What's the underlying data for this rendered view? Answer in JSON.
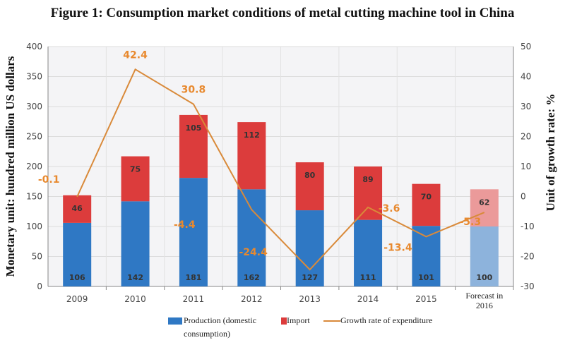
{
  "chart_data": {
    "type": "bar",
    "title": "Figure 1: Consumption market conditions of metal cutting machine tool in China",
    "ylabel": "Monetary unit: hundred million US dollars",
    "y2label": "Unit of growth rate: %",
    "ylim": [
      0,
      400
    ],
    "y2lim": [
      -30,
      50
    ],
    "yticks": [
      0,
      50,
      100,
      150,
      200,
      250,
      300,
      350,
      400
    ],
    "y2ticks": [
      -30,
      -20,
      -10,
      0,
      10,
      20,
      30,
      40,
      50
    ],
    "categories": [
      "2009",
      "2010",
      "2011",
      "2012",
      "2013",
      "2014",
      "2015",
      "Forecast in 2016"
    ],
    "stacked": true,
    "grid": true,
    "legend_position": "bottom",
    "series": [
      {
        "name": "Production (domestic consumption)",
        "type": "bar",
        "color": "#2f78c4",
        "values": [
          106,
          142,
          181,
          162,
          127,
          111,
          101,
          100
        ]
      },
      {
        "name": "Import",
        "type": "bar",
        "color": "#dc3c3c",
        "values": [
          46,
          75,
          105,
          112,
          80,
          89,
          70,
          62
        ]
      },
      {
        "name": "Growth rate of expenditure",
        "type": "line",
        "axis": "right",
        "color": "#d98a3a",
        "values": [
          -0.1,
          42.4,
          30.8,
          -4.4,
          -24.4,
          -3.6,
          -13.4,
          -5.3
        ]
      }
    ]
  }
}
